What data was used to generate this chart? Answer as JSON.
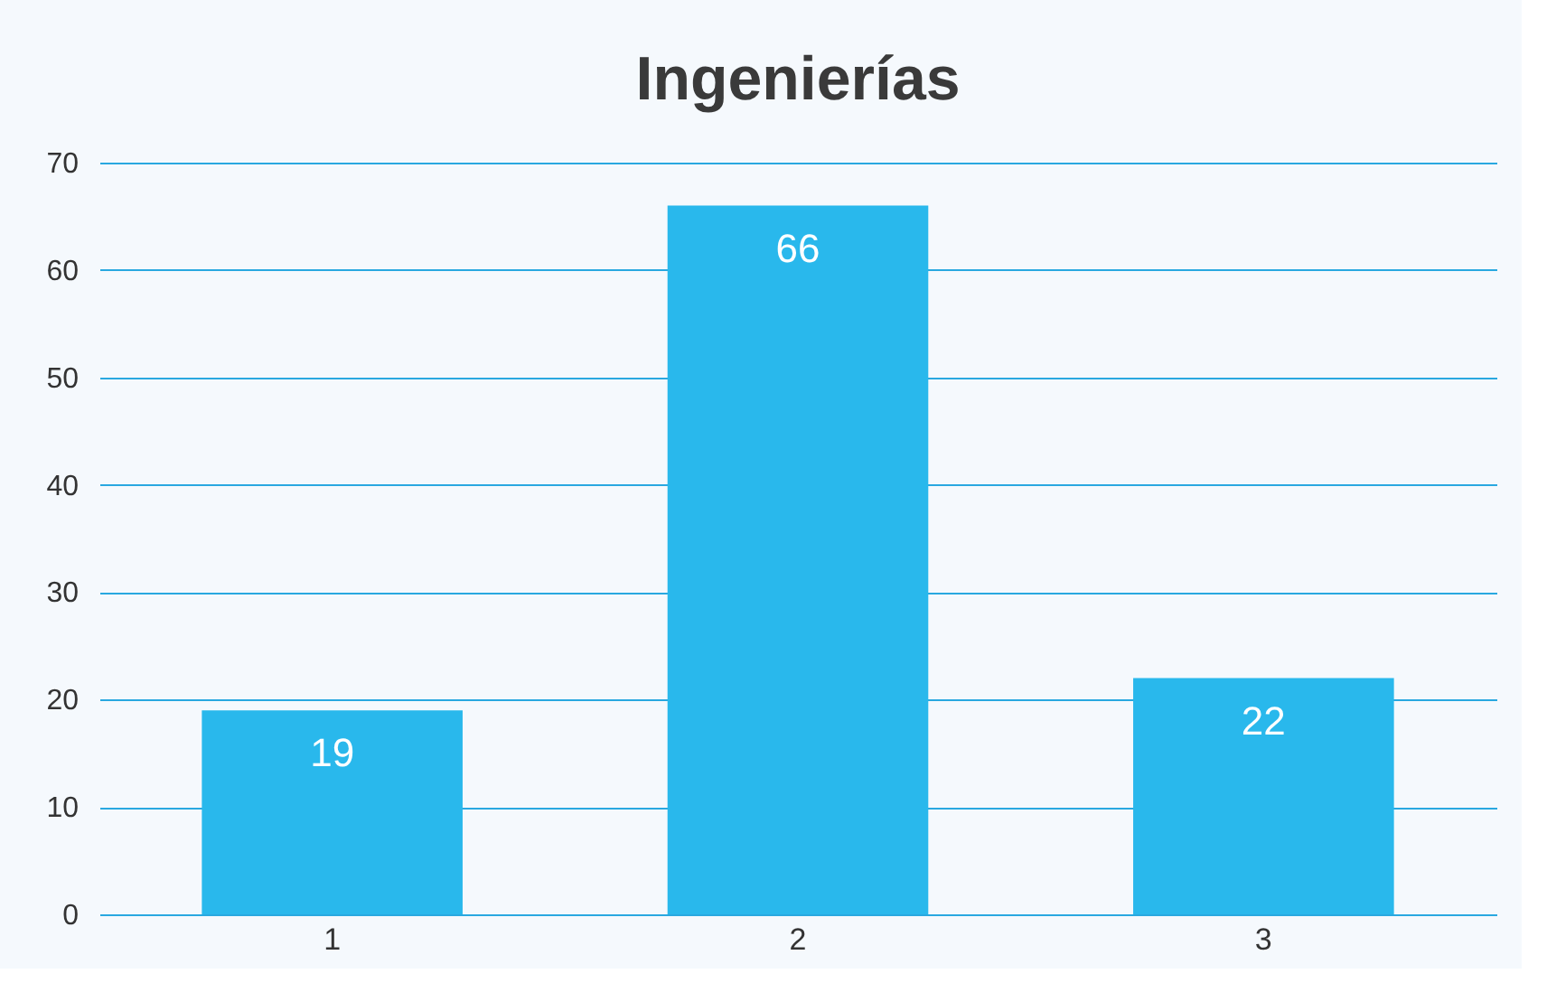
{
  "chart_data": {
    "type": "bar",
    "title": "Ingenierías",
    "categories": [
      "1",
      "2",
      "3"
    ],
    "values": [
      19,
      66,
      22
    ],
    "color": "#29b8ec",
    "ylim": [
      0,
      70
    ],
    "yticks": [
      0,
      10,
      20,
      30,
      40,
      50,
      60,
      70
    ],
    "grid": "y",
    "data_labels": true
  }
}
